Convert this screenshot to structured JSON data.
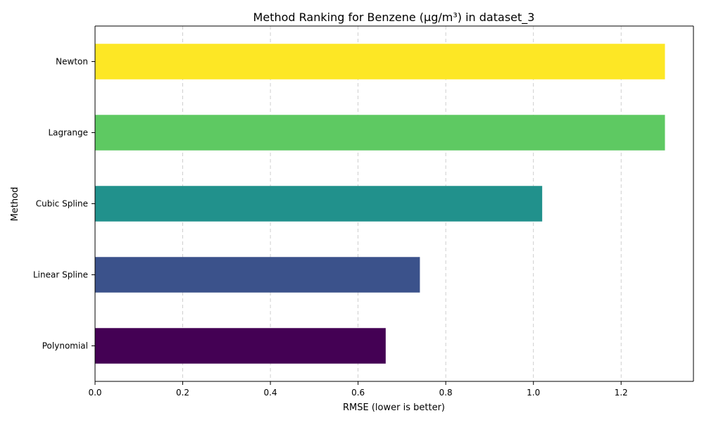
{
  "chart_data": {
    "type": "bar",
    "orientation": "horizontal",
    "title": "Method Ranking for Benzene (µg/m³) in dataset_3",
    "xlabel": "RMSE (lower is better)",
    "ylabel": "Method",
    "categories": [
      "Polynomial",
      "Linear Spline",
      "Cubic Spline",
      "Lagrange",
      "Newton"
    ],
    "values": [
      0.663,
      0.741,
      1.02,
      1.3,
      1.3
    ],
    "colors": [
      "#440154",
      "#3b528b",
      "#21918c",
      "#5ec962",
      "#fde725"
    ],
    "xlim": [
      0,
      1.365
    ],
    "xticks": [
      0.0,
      0.2,
      0.4,
      0.6,
      0.8,
      1.0,
      1.2
    ],
    "xtick_labels": [
      "0.0",
      "0.2",
      "0.4",
      "0.6",
      "0.8",
      "1.0",
      "1.2"
    ],
    "grid": "x-axis, dashed",
    "legend": "none"
  }
}
